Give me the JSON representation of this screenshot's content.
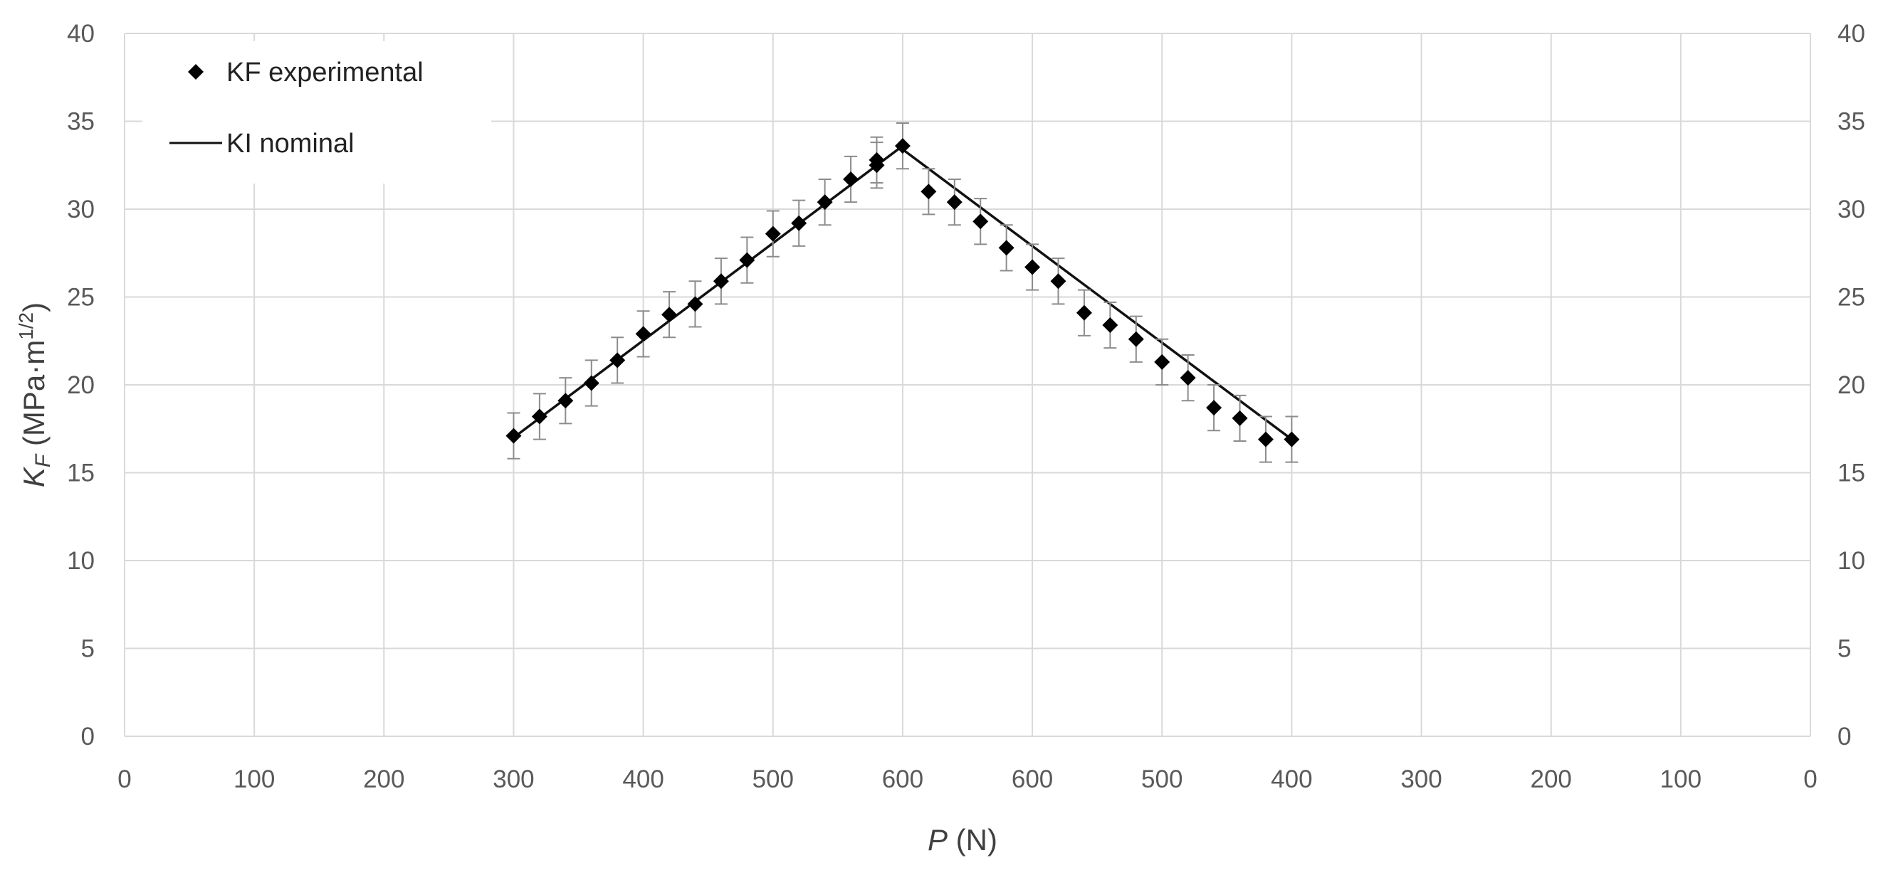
{
  "chart_data": {
    "type": "scatter",
    "title": "",
    "xlabel_symbol": "P",
    "xlabel_unit": " (N)",
    "ylabel_symbol": "K",
    "ylabel_subscript": "F",
    "ylabel_unit": " (MPa·m",
    "ylabel_exponent": "1/2",
    "ylabel_close": ")",
    "x_tick_labels": [
      "0",
      "100",
      "200",
      "300",
      "400",
      "500",
      "600",
      "600",
      "500",
      "400",
      "300",
      "200",
      "100",
      "0"
    ],
    "y_ticks": [
      0,
      5,
      10,
      15,
      20,
      25,
      30,
      35,
      40
    ],
    "ylim": [
      0,
      40
    ],
    "grid": true,
    "legend_position": "top-left",
    "legend": [
      {
        "name": "KF experimental",
        "marker": "diamond"
      },
      {
        "name": "KI nominal",
        "marker": "line"
      }
    ],
    "colors": {
      "marker": "#000000",
      "line": "#111111",
      "error_bar": "#8c8c8c",
      "grid": "#d9d9d9"
    },
    "series": [
      {
        "name": "KF experimental",
        "x_loading": [
          300,
          320,
          340,
          360,
          380,
          400,
          420,
          440,
          460,
          480,
          500,
          520,
          540,
          560,
          580,
          600
        ],
        "y_loading": [
          17.1,
          18.2,
          19.1,
          20.1,
          21.4,
          22.9,
          24.0,
          24.6,
          25.9,
          27.1,
          28.6,
          29.2,
          30.4,
          31.7,
          32.5,
          33.6
        ],
        "x_unloading": [
          620,
          580,
          560,
          540,
          520,
          500,
          480,
          460,
          440,
          420,
          400,
          380,
          360,
          340,
          320,
          300
        ],
        "y_unloading": [
          32.8,
          31.0,
          30.4,
          29.3,
          27.8,
          26.7,
          25.9,
          24.1,
          23.4,
          22.6,
          21.3,
          20.4,
          18.7,
          18.1,
          16.9,
          16.9
        ],
        "error": 1.3
      },
      {
        "name": "KI nominal",
        "x_loading": [
          300,
          600
        ],
        "y_loading": [
          17.0,
          33.6
        ],
        "x_unloading": [
          600,
          300
        ],
        "y_unloading": [
          33.4,
          16.9
        ]
      }
    ]
  }
}
